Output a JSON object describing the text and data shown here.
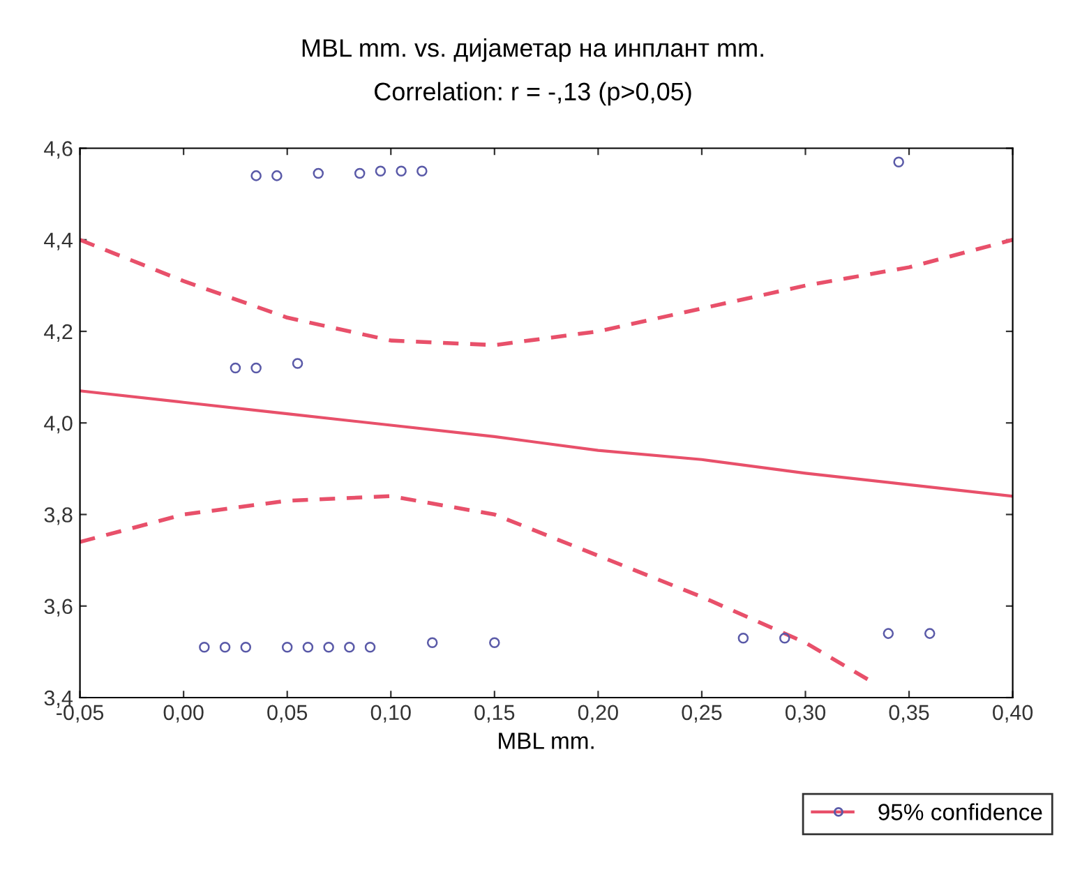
{
  "chart_data": {
    "type": "scatter",
    "title": "MBL mm. vs. дијаметар на инплант mm.",
    "subtitle": "Correlation: r = -,13 (p>0,05)",
    "xlabel": "MBL mm.",
    "series": [
      {
        "color": "#5a5aa8",
        "marker": "circle",
        "x": [
          0.035,
          0.045,
          0.065,
          0.085,
          0.095,
          0.105,
          0.115,
          0.345,
          0.025,
          0.035,
          0.055,
          0.01,
          0.02,
          0.03,
          0.05,
          0.06,
          0.07,
          0.08,
          0.09,
          0.12,
          0.15,
          0.27,
          0.29,
          0.34,
          0.36
        ],
        "values": [
          4.54,
          4.54,
          4.545,
          4.545,
          4.55,
          4.55,
          4.55,
          4.57,
          4.12,
          4.12,
          4.13,
          3.51,
          3.51,
          3.51,
          3.51,
          3.51,
          3.51,
          3.51,
          3.51,
          3.52,
          3.52,
          3.53,
          3.53,
          3.54,
          3.54
        ]
      },
      {
        "type": "line",
        "name": "95% confidence",
        "color": "#e8506a",
        "marker": "none",
        "line_style": "solid",
        "x": [
          -0.05,
          0.0,
          0.05,
          0.1,
          0.15,
          0.2,
          0.25,
          0.3,
          0.35,
          0.4
        ],
        "values": [
          4.07,
          4.045,
          4.02,
          3.995,
          3.97,
          3.94,
          3.92,
          3.89,
          3.865,
          3.84
        ]
      },
      {
        "type": "line",
        "color": "#e8506a",
        "marker": "none",
        "line_style": "dashed",
        "x": [
          -0.05,
          0.0,
          0.05,
          0.1,
          0.15,
          0.2,
          0.25,
          0.3,
          0.35,
          0.4
        ],
        "values": [
          4.4,
          4.31,
          4.23,
          4.18,
          4.17,
          4.2,
          4.25,
          4.3,
          4.34,
          4.4
        ]
      },
      {
        "type": "line",
        "color": "#e8506a",
        "marker": "none",
        "line_style": "dashed",
        "x": [
          -0.05,
          0.0,
          0.05,
          0.1,
          0.15,
          0.2,
          0.25,
          0.3,
          0.33
        ],
        "values": [
          3.74,
          3.8,
          3.83,
          3.84,
          3.8,
          3.71,
          3.62,
          3.52,
          3.44
        ]
      }
    ],
    "xlim": [
      -0.05,
      0.4
    ],
    "ylim": [
      3.4,
      4.6
    ],
    "xticks": [
      {
        "value": -0.05,
        "label": "-0,05"
      },
      {
        "value": 0.0,
        "label": "0,00"
      },
      {
        "value": 0.05,
        "label": "0,05"
      },
      {
        "value": 0.1,
        "label": "0,10"
      },
      {
        "value": 0.15,
        "label": "0,15"
      },
      {
        "value": 0.2,
        "label": "0,20"
      },
      {
        "value": 0.25,
        "label": "0,25"
      },
      {
        "value": 0.3,
        "label": "0,30"
      },
      {
        "value": 0.35,
        "label": "0,35"
      },
      {
        "value": 0.4,
        "label": "0,40"
      }
    ],
    "yticks": [
      {
        "value": 3.4,
        "label": "3,4"
      },
      {
        "value": 3.6,
        "label": "3,6"
      },
      {
        "value": 3.8,
        "label": "3,8"
      },
      {
        "value": 4.0,
        "label": "4,0"
      },
      {
        "value": 4.2,
        "label": "4,2"
      },
      {
        "value": 4.4,
        "label": "4,4"
      },
      {
        "value": 4.6,
        "label": "4,6"
      }
    ],
    "grid": false,
    "legend": "bottom right"
  }
}
